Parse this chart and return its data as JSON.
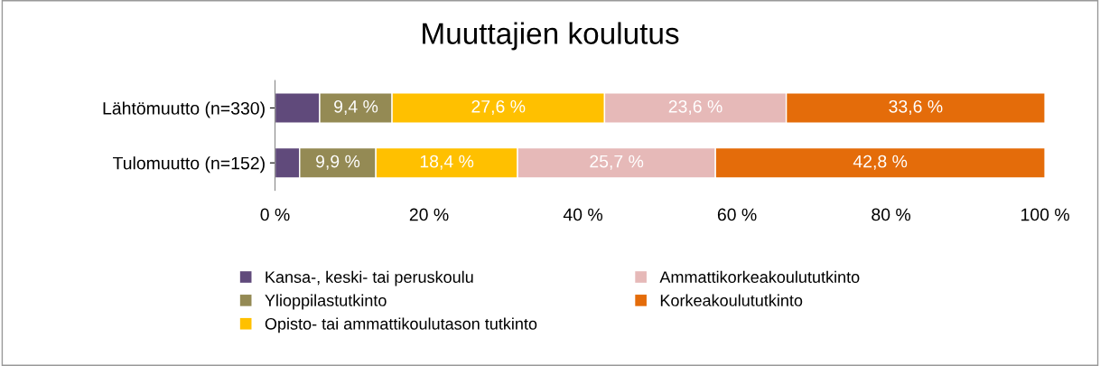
{
  "chart_data": {
    "type": "bar",
    "title": "Muuttajien koulutus",
    "orientation": "horizontal",
    "stacked": true,
    "categories": [
      "Lähtömuutto (n=330)",
      "Tulomuutto (n=152)"
    ],
    "series": [
      {
        "name": "Kansa-, keski- tai peruskoulu",
        "color": "#604a7b",
        "values": [
          5.8,
          3.2
        ],
        "value_labels": [
          null,
          null
        ]
      },
      {
        "name": "Ylioppilastutkinto",
        "color": "#948a54",
        "values": [
          9.4,
          9.9
        ],
        "value_labels": [
          "9,4 %",
          "9,9 %"
        ]
      },
      {
        "name": "Opisto- tai ammattikoulutason tutkinto",
        "color": "#ffc000",
        "values": [
          27.6,
          18.4
        ],
        "value_labels": [
          "27,6 %",
          "18,4 %"
        ]
      },
      {
        "name": "Ammattikorkeakoulututkinto",
        "color": "#e6b9b8",
        "values": [
          23.6,
          25.7
        ],
        "value_labels": [
          "23,6 %",
          "25,7 %"
        ]
      },
      {
        "name": "Korkeakoulututkinto",
        "color": "#e46c0a",
        "values": [
          33.6,
          42.8
        ],
        "value_labels": [
          "33,6 %",
          "42,8 %"
        ]
      }
    ],
    "xlim": [
      0,
      100
    ],
    "xticks": [
      {
        "value": 0,
        "label": "0 %"
      },
      {
        "value": 20,
        "label": "20 %"
      },
      {
        "value": 40,
        "label": "40 %"
      },
      {
        "value": 60,
        "label": "60 %"
      },
      {
        "value": 80,
        "label": "80 %"
      },
      {
        "value": 100,
        "label": "100 %"
      }
    ],
    "grid": false,
    "legend": "bottom"
  }
}
